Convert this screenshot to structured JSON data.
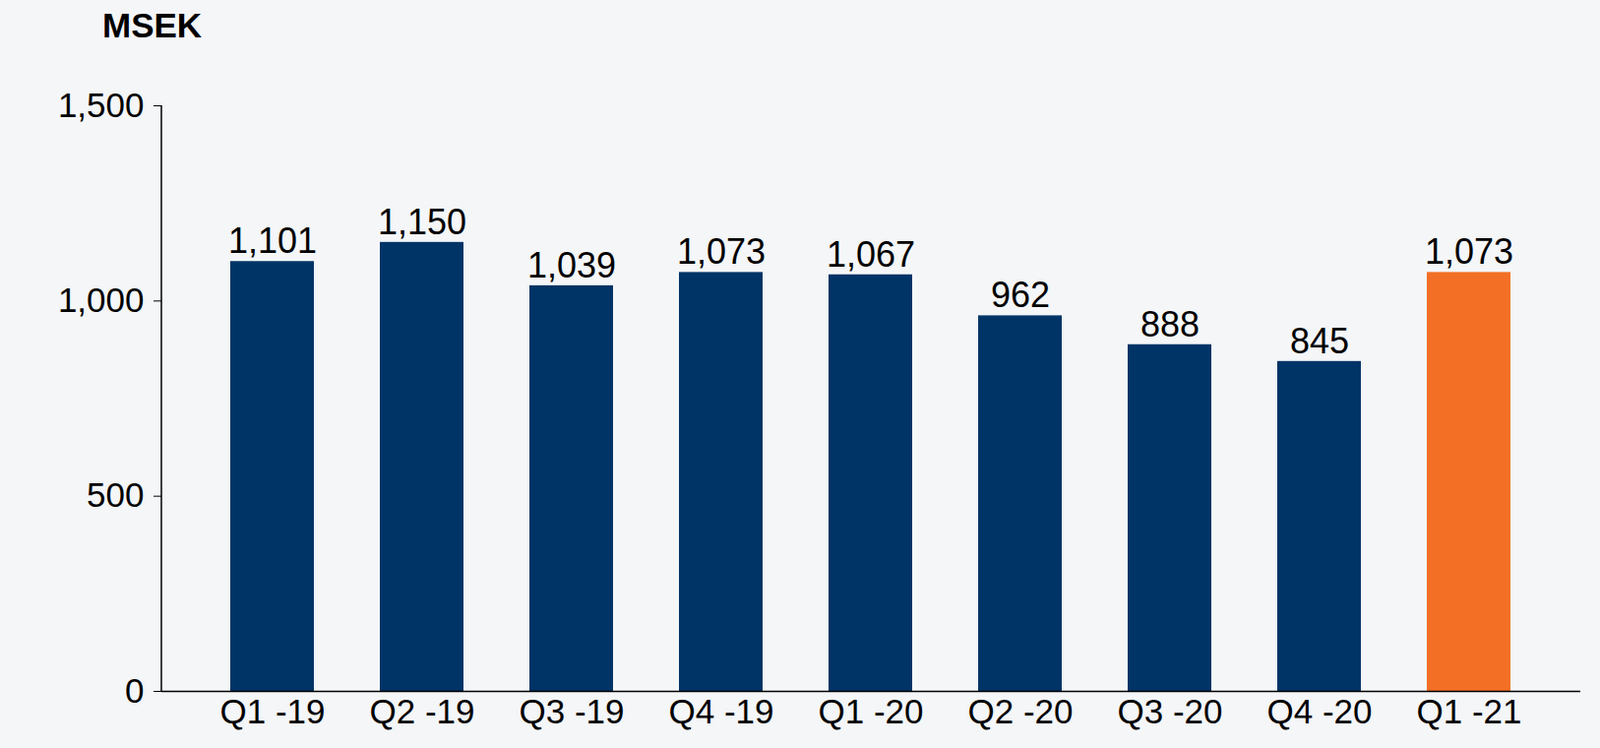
{
  "chart_data": {
    "type": "bar",
    "y_label": "MSEK",
    "categories": [
      "Q1 -19",
      "Q2 -19",
      "Q3 -19",
      "Q4 -19",
      "Q1 -20",
      "Q2 -20",
      "Q3 -20",
      "Q4 -20",
      "Q1 -21"
    ],
    "values": [
      1101,
      1150,
      1039,
      1073,
      1067,
      962,
      888,
      845,
      1073
    ],
    "value_labels": [
      "1,101",
      "1,150",
      "1,039",
      "1,073",
      "1,067",
      "962",
      "888",
      "845",
      "1,073"
    ],
    "colors": [
      "#003466",
      "#003466",
      "#003466",
      "#003466",
      "#003466",
      "#003466",
      "#003466",
      "#003466",
      "#f26f25"
    ],
    "ylim": [
      0,
      1500
    ],
    "yticks": [
      0,
      500,
      {
        "value": 1000,
        "label": "1,000"
      },
      {
        "value": 1500,
        "label": "1,500"
      }
    ],
    "grid": false,
    "data_labels": true
  }
}
